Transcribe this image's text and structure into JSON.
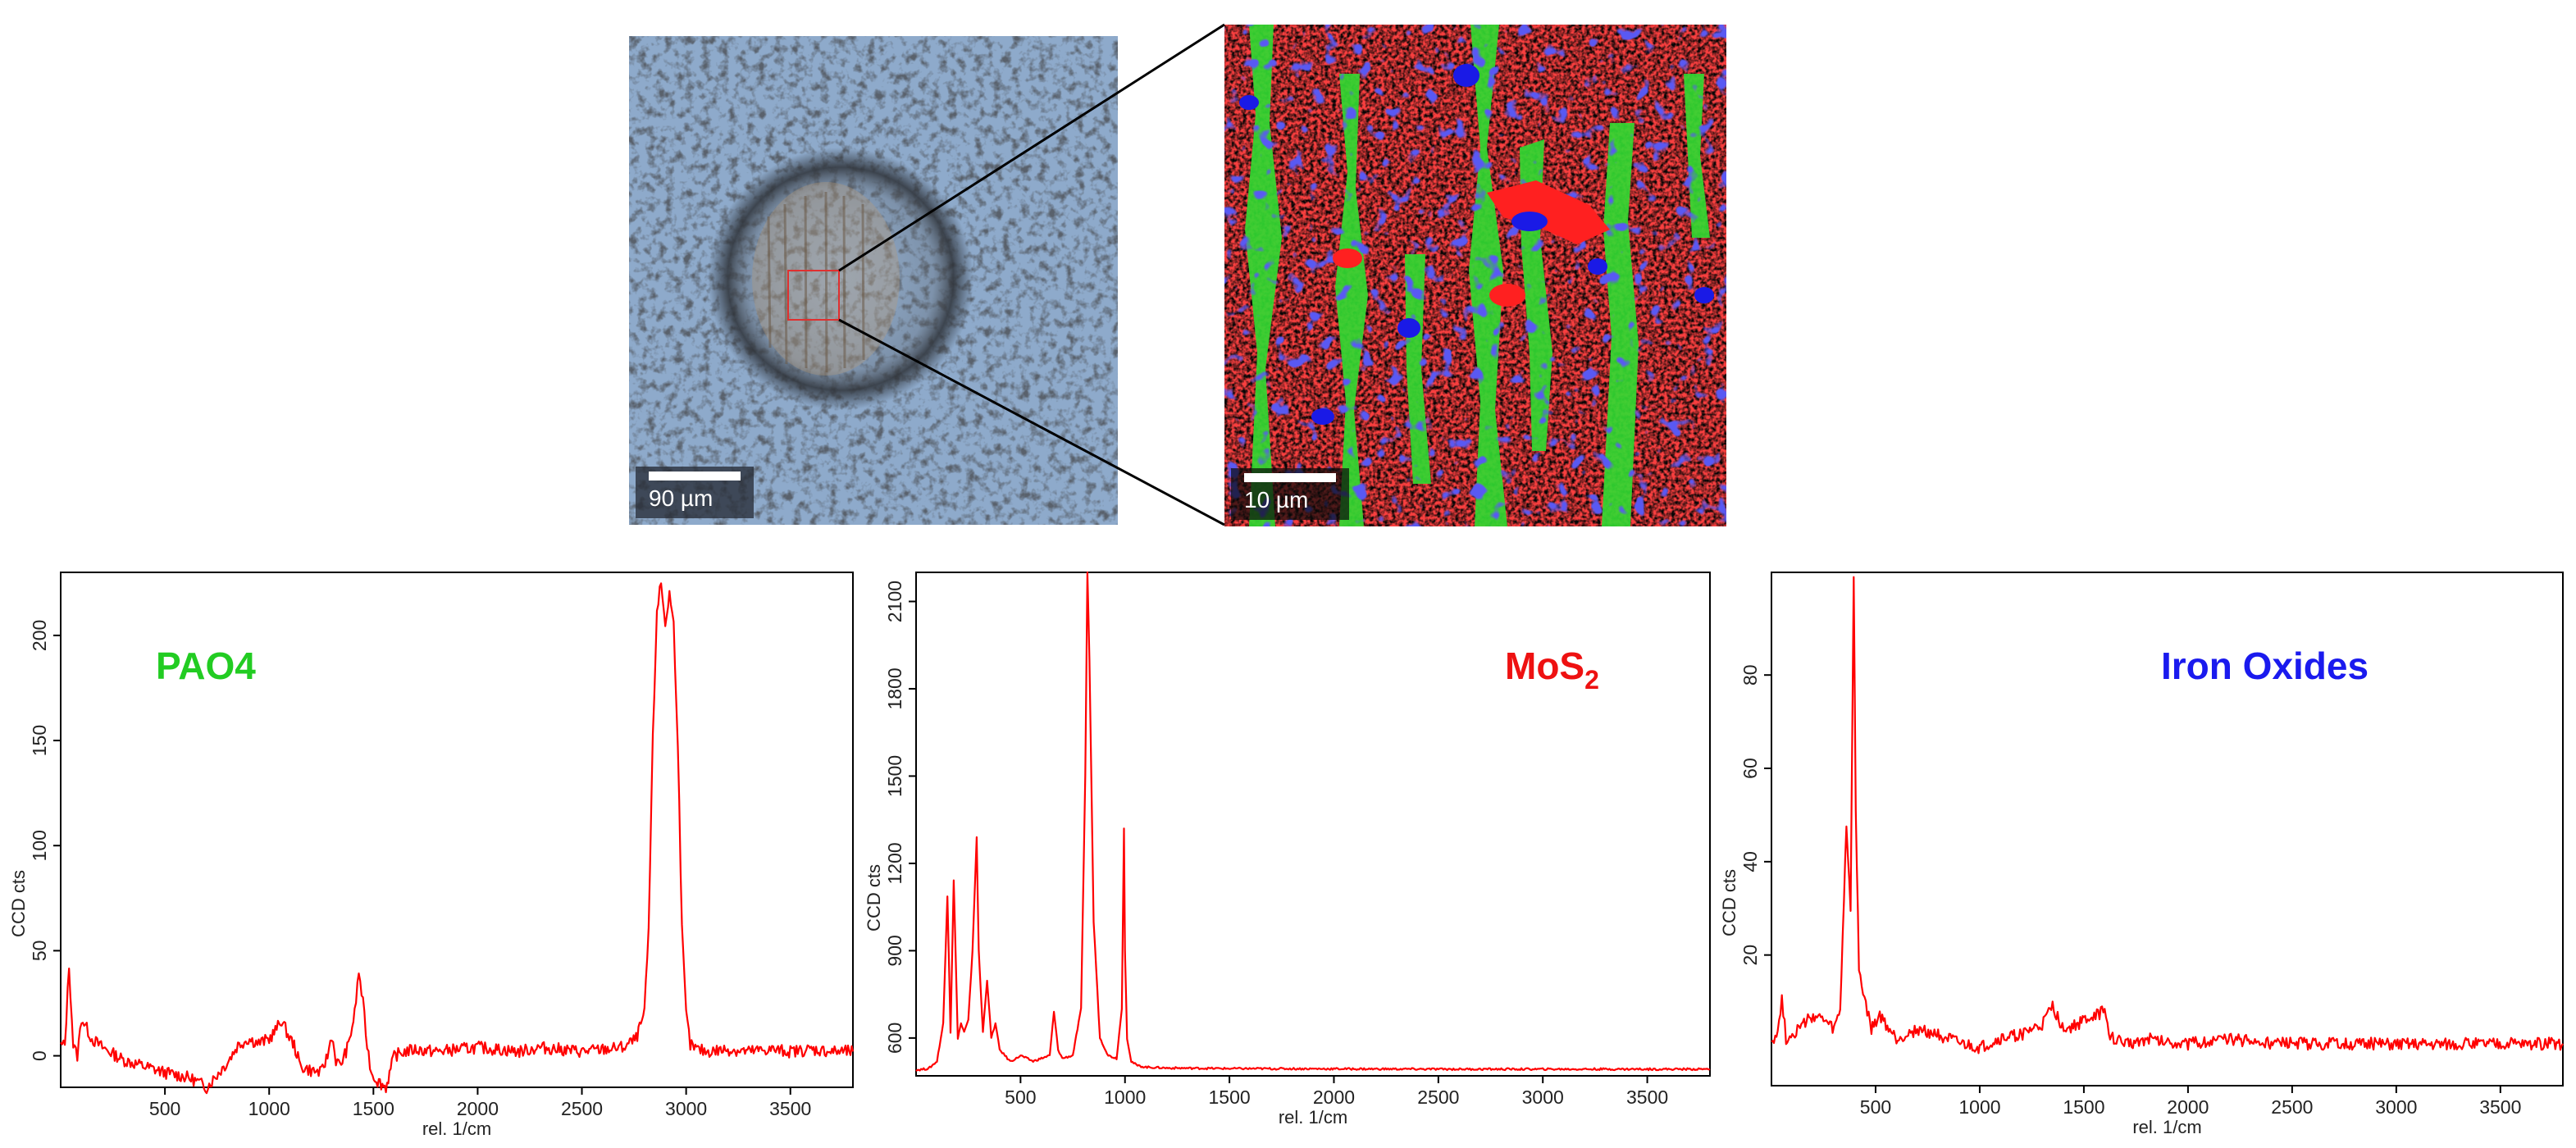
{
  "micrograph": {
    "scalebar_label": "90 µm"
  },
  "raman_map": {
    "scalebar_label": "10 µm",
    "colors": {
      "pao4": "#2ad02a",
      "mos2": "#e81818",
      "iron_oxides": "#1a1ae6"
    }
  },
  "chart_data": [
    {
      "type": "line",
      "annotation": "PAO4",
      "annotation_color": "#22cc22",
      "xlabel": "rel. 1/cm",
      "ylabel": "CCD cts",
      "xlim": [
        0,
        3800
      ],
      "ylim": [
        -15,
        230
      ],
      "xticks": [
        500,
        1000,
        1500,
        2000,
        2500,
        3000,
        3500
      ],
      "yticks": [
        0,
        50,
        100,
        150,
        200
      ],
      "series": [
        {
          "color": "#ff0000",
          "x": [
            0,
            20,
            40,
            60,
            80,
            100,
            150,
            200,
            300,
            400,
            500,
            600,
            650,
            700,
            750,
            800,
            850,
            900,
            950,
            1000,
            1030,
            1060,
            1090,
            1120,
            1150,
            1200,
            1250,
            1280,
            1300,
            1320,
            1340,
            1380,
            1410,
            1430,
            1450,
            1470,
            1490,
            1520,
            1560,
            1600,
            1650,
            1700,
            1800,
            1900,
            2000,
            2100,
            2200,
            2300,
            2400,
            2500,
            2600,
            2700,
            2760,
            2800,
            2820,
            2840,
            2860,
            2880,
            2900,
            2920,
            2940,
            2960,
            2980,
            3000,
            3020,
            3050,
            3100,
            3200,
            3300,
            3400,
            3500,
            3600,
            3700,
            3800
          ],
          "y": [
            5,
            5,
            43,
            5,
            0,
            18,
            8,
            4,
            -2,
            -5,
            -8,
            -10,
            -12,
            -15,
            -9,
            -3,
            5,
            8,
            6,
            8,
            12,
            17,
            10,
            5,
            -5,
            -7,
            -8,
            0,
            10,
            -2,
            -5,
            5,
            20,
            40,
            25,
            5,
            -8,
            -12,
            -15,
            0,
            2,
            3,
            2,
            3,
            4,
            3,
            2,
            4,
            3,
            2,
            3,
            4,
            8,
            20,
            60,
            150,
            212,
            225,
            205,
            220,
            205,
            150,
            60,
            20,
            5,
            3,
            2,
            3,
            2,
            3,
            2,
            3,
            2,
            2
          ]
        }
      ]
    },
    {
      "type": "line",
      "annotation": "MoS",
      "annotation_subscript": "2",
      "annotation_color": "#ee1111",
      "xlabel": "rel. 1/cm",
      "ylabel": "CCD cts",
      "xlim": [
        0,
        3800
      ],
      "ylim": [
        470,
        2200
      ],
      "xticks": [
        500,
        1000,
        1500,
        2000,
        2500,
        3000,
        3500
      ],
      "yticks": [
        600,
        900,
        1200,
        1500,
        1800,
        2100
      ],
      "series": [
        {
          "color": "#ff0000",
          "x": [
            0,
            60,
            100,
            130,
            150,
            165,
            180,
            200,
            215,
            230,
            250,
            270,
            290,
            300,
            320,
            340,
            360,
            380,
            400,
            450,
            480,
            500,
            560,
            600,
            640,
            660,
            680,
            700,
            750,
            790,
            810,
            820,
            830,
            850,
            880,
            920,
            960,
            985,
            995,
            1000,
            1010,
            1030,
            1060,
            1100,
            1200,
            1500,
            2000,
            2500,
            3000,
            3500,
            3800
          ],
          "y": [
            490,
            495,
            520,
            650,
            1090,
            620,
            1140,
            600,
            650,
            620,
            660,
            900,
            1290,
            900,
            620,
            800,
            600,
            650,
            560,
            520,
            530,
            540,
            520,
            530,
            540,
            690,
            560,
            530,
            540,
            700,
            1500,
            2200,
            1900,
            1000,
            600,
            540,
            530,
            700,
            1320,
            900,
            600,
            520,
            505,
            500,
            497,
            495,
            494,
            493,
            493,
            493,
            493
          ]
        }
      ]
    },
    {
      "type": "line",
      "annotation": "Iron Oxides",
      "annotation_color": "#1a1aee",
      "xlabel": "rel. 1/cm",
      "ylabel": "CCD cts",
      "xlim": [
        0,
        3800
      ],
      "ylim": [
        -8,
        102
      ],
      "xticks": [
        500,
        1000,
        1500,
        2000,
        2500,
        3000,
        3500
      ],
      "yticks": [
        20,
        40,
        60,
        80
      ],
      "series": [
        {
          "color": "#ff0000",
          "x": [
            0,
            30,
            50,
            70,
            100,
            150,
            200,
            250,
            300,
            330,
            360,
            380,
            395,
            405,
            420,
            440,
            460,
            480,
            520,
            550,
            600,
            650,
            700,
            800,
            900,
            1000,
            1100,
            1200,
            1300,
            1350,
            1380,
            1420,
            1460,
            1500,
            1550,
            1600,
            1620,
            1650,
            1700,
            1800,
            2000,
            2200,
            2400,
            2600,
            2800,
            3000,
            3200,
            3400,
            3600,
            3800
          ],
          "y": [
            2,
            3,
            11,
            2,
            3,
            5,
            7,
            6,
            4,
            8,
            48,
            30,
            101,
            50,
            17,
            12,
            8,
            4,
            7,
            5,
            2,
            3,
            4,
            3,
            1,
            0,
            2,
            3,
            5,
            9,
            6,
            4,
            5,
            6,
            7,
            8,
            3,
            2,
            1,
            2,
            1,
            2,
            1,
            1,
            1,
            1,
            1,
            1,
            1,
            1
          ]
        }
      ]
    }
  ]
}
